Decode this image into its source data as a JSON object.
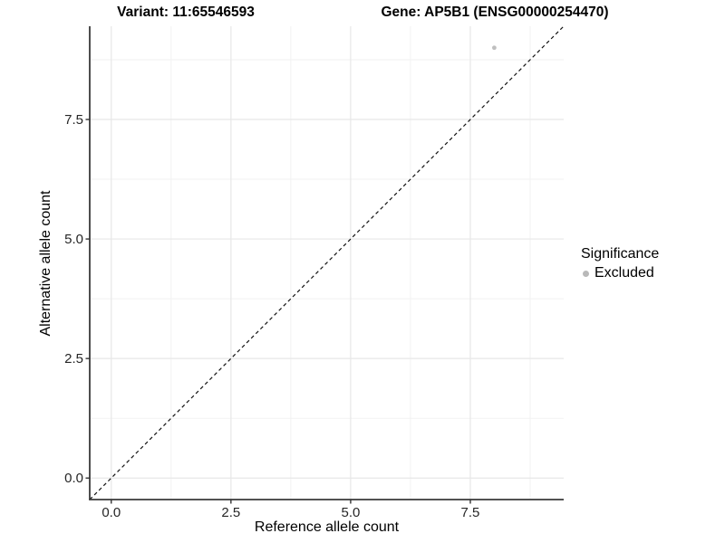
{
  "figure": {
    "title_left": "Variant: 11:65546593",
    "title_right": "Gene: AP5B1 (ENSG00000254470)"
  },
  "chart_data": {
    "type": "scatter",
    "title": "Variant: 11:65546593 | Gene: AP5B1 (ENSG00000254470)",
    "xlabel": "Reference allele count",
    "ylabel": "Alternative allele count",
    "xlim": [
      -0.45,
      9.45
    ],
    "ylim": [
      -0.45,
      9.45
    ],
    "x_ticks": [
      0.0,
      2.5,
      5.0,
      7.5
    ],
    "x_tick_labels": [
      "0.0",
      "2.5",
      "5.0",
      "7.5"
    ],
    "y_ticks": [
      0.0,
      2.5,
      5.0,
      7.5
    ],
    "y_tick_labels": [
      "0.0",
      "2.5",
      "5.0",
      "7.5"
    ],
    "minor_ticks": [
      1.25,
      3.75,
      6.25,
      8.75
    ],
    "grid": true,
    "series": [
      {
        "name": "Excluded",
        "color": "#bfbfbf",
        "points": [
          {
            "x": 8,
            "y": 9
          }
        ]
      }
    ],
    "reference_line": {
      "type": "identity",
      "slope": 1,
      "intercept": 0,
      "style": "dashed",
      "color": "#111111"
    },
    "legend": {
      "title": "Significance",
      "position": "right",
      "entries": [
        {
          "label": "Excluded",
          "color": "#b9b9b9"
        }
      ]
    }
  },
  "colors": {
    "background": "#ffffff",
    "grid_major": "#e7e7e7",
    "grid_minor": "#f2f2f2",
    "axis_line": "#3a3a3a",
    "tick_mark": "#333333",
    "tick_text": "#262626",
    "point": "#bfbfbf"
  }
}
